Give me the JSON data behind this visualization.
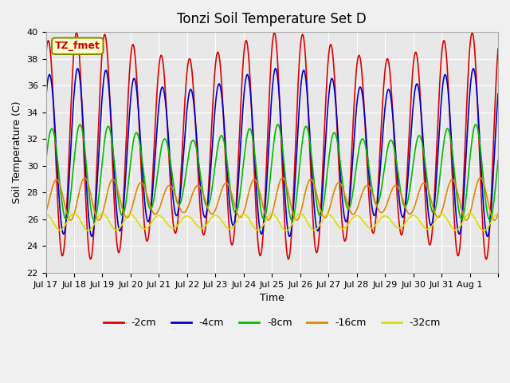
{
  "title": "Tonzi Soil Temperature Set D",
  "xlabel": "Time",
  "ylabel": "Soil Temperature (C)",
  "ylim": [
    22,
    40
  ],
  "annotation_text": "TZ_fmet",
  "series": {
    "-2cm": {
      "color": "#dd0000",
      "lw": 1.2
    },
    "-4cm": {
      "color": "#0000cc",
      "lw": 1.2
    },
    "-8cm": {
      "color": "#00bb00",
      "lw": 1.2
    },
    "-16cm": {
      "color": "#dd8800",
      "lw": 1.2
    },
    "-32cm": {
      "color": "#dddd00",
      "lw": 1.2
    }
  },
  "x_tick_positions": [
    0,
    1,
    2,
    3,
    4,
    5,
    6,
    7,
    8,
    9,
    10,
    11,
    12,
    13,
    14,
    15,
    16
  ],
  "x_tick_labels": [
    "Jul 17",
    "Jul 18",
    "Jul 19",
    "Jul 20",
    "Jul 21",
    "Jul 22",
    "Jul 23",
    "Jul 24",
    "Jul 25",
    "Jul 26",
    "Jul 27",
    "Jul 28",
    "Jul 29",
    "Jul 30",
    "Jul 31",
    "Aug 1",
    ""
  ],
  "y_tick_positions": [
    22,
    24,
    26,
    28,
    30,
    32,
    34,
    36,
    38,
    40
  ],
  "plot_bg_color": "#e8e8e8",
  "fig_bg_color": "#f0f0f0",
  "grid_color": "#ffffff"
}
